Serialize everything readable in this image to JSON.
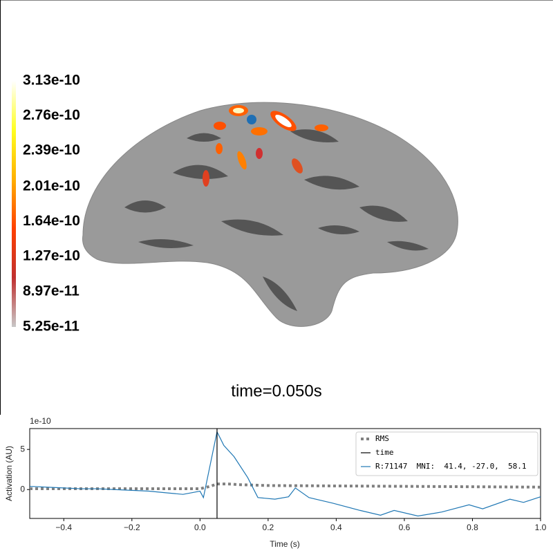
{
  "time_label": "time=0.050s",
  "colorbar": {
    "clim": [
      5.25e-11,
      3.13e-10
    ],
    "ticks": [
      3.13e-10,
      2.76e-10,
      2.39e-10,
      2.01e-10,
      1.64e-10,
      1.27e-10,
      8.97e-11,
      5.25e-11
    ],
    "colors": [
      "#c8c8c8",
      "#c03030",
      "#ff4000",
      "#ffb000",
      "#ffff20",
      "#ffffff"
    ]
  },
  "chart_data": {
    "type": "line",
    "xlabel": "Time (s)",
    "ylabel": "Activation (AU)",
    "y_offset_label": "1e-10",
    "xlim": [
      -0.5,
      1.0
    ],
    "ylim": [
      -3.6,
      7.6
    ],
    "xticks": [
      {
        "value": -0.4,
        "label": "−0.4"
      },
      {
        "value": -0.2,
        "label": "−0.2"
      },
      {
        "value": 0,
        "label": "0.0"
      },
      0.2,
      0.4,
      0.6,
      0.8,
      {
        "value": 1,
        "label": "1.0"
      }
    ],
    "yticks": [
      0,
      5
    ],
    "legend": "upper right",
    "series": [
      {
        "name": "RMS",
        "color": "#808080",
        "dash": "dotted",
        "x": [
          -0.5,
          -0.3,
          -0.1,
          0.0,
          0.03,
          0.05,
          0.08,
          0.12,
          0.2,
          0.4,
          0.6,
          0.8,
          1.0
        ],
        "values": [
          0.1,
          0.1,
          0.1,
          0.1,
          0.4,
          0.7,
          0.7,
          0.6,
          0.5,
          0.45,
          0.4,
          0.35,
          0.3
        ]
      },
      {
        "name": "R:71147  MNI:  41.4, -27.0,  58.1",
        "color": "#1f77b4",
        "dash": "solid",
        "x": [
          -0.5,
          -0.45,
          -0.4,
          -0.35,
          -0.3,
          -0.25,
          -0.2,
          -0.15,
          -0.1,
          -0.05,
          0.0,
          0.01,
          0.05,
          0.07,
          0.1,
          0.14,
          0.17,
          0.22,
          0.26,
          0.28,
          0.32,
          0.39,
          0.47,
          0.53,
          0.57,
          0.64,
          0.71,
          0.79,
          0.83,
          0.91,
          0.95,
          1.0
        ],
        "values": [
          0.4,
          0.3,
          0.2,
          0.1,
          0.1,
          0.0,
          -0.1,
          -0.2,
          -0.4,
          -0.6,
          -0.2,
          -1.0,
          7.2,
          5.5,
          4.1,
          1.5,
          -1.0,
          -1.2,
          -0.9,
          0.2,
          -1.0,
          -1.7,
          -2.6,
          -3.2,
          -2.6,
          -3.3,
          -2.8,
          -1.9,
          -2.4,
          -1.2,
          -1.6,
          -0.9
        ]
      }
    ],
    "vlines": [
      {
        "name": "time",
        "x": 0.05,
        "color": "#000000"
      }
    ]
  }
}
